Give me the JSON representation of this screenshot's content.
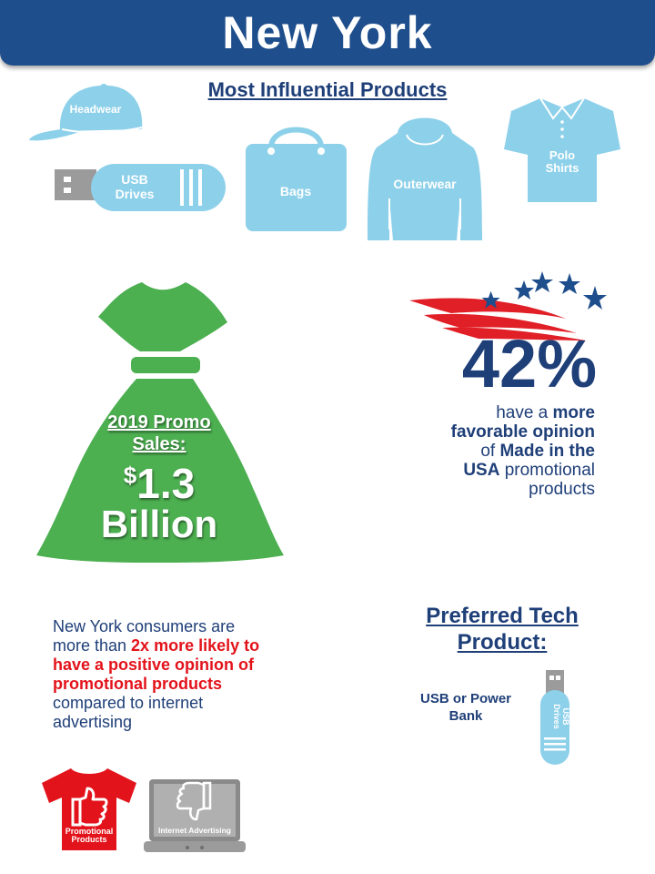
{
  "header": {
    "title": "New York"
  },
  "products": {
    "title": "Most Influential Products",
    "headwear": "Headwear",
    "usb_line1": "USB",
    "usb_line2": "Drives",
    "bags": "Bags",
    "outerwear": "Outerwear",
    "polo_line1": "Polo",
    "polo_line2": "Shirts"
  },
  "sales": {
    "label_line1": "2019 Promo",
    "label_line2": "Sales:",
    "currency": "$",
    "amount": "1.3",
    "unit": "Billion"
  },
  "usa_stat": {
    "percent": "42%",
    "line1_plain": "have a ",
    "line1_bold": "more",
    "line2_bold": "favorable opinion",
    "line3_plain": "of ",
    "line3_bold": "Made in the",
    "line4_bold": "USA",
    "line4_plain": " promotional",
    "line5_plain": "products"
  },
  "comparison": {
    "intro": "New York consumers are more than ",
    "highlight": "2x more likely to have a positive opinion of promotional products",
    "outro": " compared to internet advertising",
    "shirt_line1": "Promotional",
    "shirt_line2": "Products",
    "laptop_label": "Internet Advertising"
  },
  "tech": {
    "title_line1": "Preferred Tech",
    "title_line2": "Product:",
    "product_line1": "USB or Power",
    "product_line2": "Bank",
    "drive_line1": "USB",
    "drive_line2": "Drives"
  },
  "colors": {
    "banner": "#1f4e8c",
    "product_blue": "#8dd0ea",
    "money_green": "#4caf50",
    "flag_red": "#e01f26",
    "accent_red": "#e3131b",
    "gray": "#9b9b9b"
  },
  "icons": [
    "cap-icon",
    "usb-drive-icon",
    "bag-icon",
    "hoodie-icon",
    "polo-shirt-icon",
    "money-bag-icon",
    "flag-stars-icon",
    "thumbs-up-shirt-icon",
    "thumbs-down-laptop-icon",
    "vertical-usb-icon"
  ]
}
